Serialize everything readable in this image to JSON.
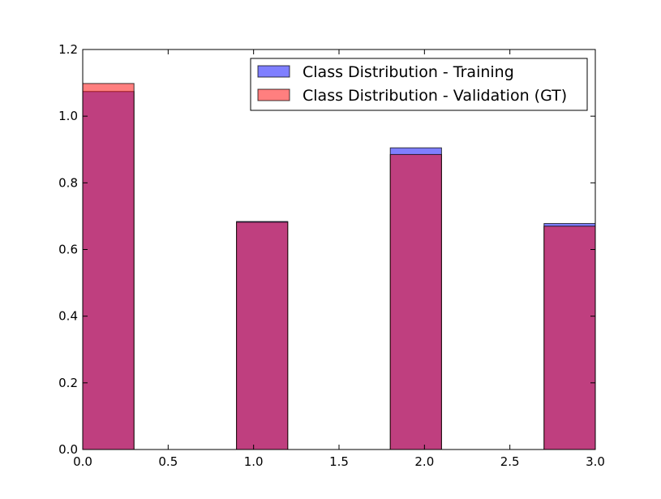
{
  "chart_data": {
    "type": "bar",
    "title": "",
    "xlabel": "",
    "ylabel": "",
    "xlim": [
      0.0,
      3.0
    ],
    "ylim": [
      0.0,
      1.2
    ],
    "xticks": [
      "0.0",
      "0.5",
      "1.0",
      "1.5",
      "2.0",
      "2.5",
      "3.0"
    ],
    "yticks": [
      "0.0",
      "0.2",
      "0.4",
      "0.6",
      "0.8",
      "1.0",
      "1.2"
    ],
    "grid": false,
    "legend_position": "top-right",
    "series": [
      {
        "name": "Class Distribution - Training",
        "color": "#0000ff",
        "alpha": 0.5,
        "bins": [
          {
            "x0": 0.0,
            "x1": 0.3,
            "value": 1.074
          },
          {
            "x0": 0.9,
            "x1": 1.2,
            "value": 0.684
          },
          {
            "x0": 1.8,
            "x1": 2.1,
            "value": 0.905
          },
          {
            "x0": 2.7,
            "x1": 3.0,
            "value": 0.678
          }
        ]
      },
      {
        "name": "Class Distribution - Validation (GT)",
        "color": "#ff0000",
        "alpha": 0.5,
        "bins": [
          {
            "x0": 0.0,
            "x1": 0.3,
            "value": 1.098
          },
          {
            "x0": 0.9,
            "x1": 1.2,
            "value": 0.682
          },
          {
            "x0": 1.8,
            "x1": 2.1,
            "value": 0.885
          },
          {
            "x0": 2.7,
            "x1": 3.0,
            "value": 0.67
          }
        ]
      }
    ]
  }
}
